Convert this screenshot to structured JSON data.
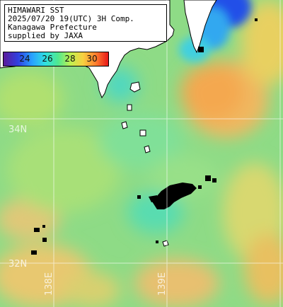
{
  "title_lines": [
    "HIMAWARI SST",
    "2025/07/20 19(UTC) 3H Comp.",
    "Kanagawa Prefecture",
    "supplied by JAXA"
  ],
  "legend": {
    "ticks": [
      "24",
      "26",
      "28",
      "30"
    ],
    "tick_values": [
      24,
      26,
      28,
      30
    ],
    "range": [
      22.5,
      31.5
    ]
  },
  "grid_labels": {
    "lat": [
      "34N",
      "32N"
    ],
    "lon": [
      "138E",
      "139E"
    ]
  },
  "colors": {
    "land": "#ffffff",
    "coast": "#000000",
    "missing": "#000000",
    "grid": "#ffffff"
  }
}
